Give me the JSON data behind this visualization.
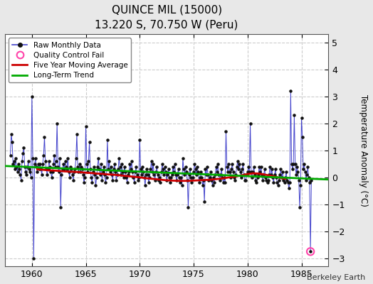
{
  "title": "QUINCE MIL (15000)",
  "subtitle": "13.220 S, 70.750 W (Peru)",
  "ylabel": "Temperature Anomaly (°C)",
  "credit": "Berkeley Earth",
  "xlim": [
    1957.5,
    1987.5
  ],
  "ylim": [
    -3.3,
    5.3
  ],
  "yticks": [
    -3,
    -2,
    -1,
    0,
    1,
    2,
    3,
    4,
    5
  ],
  "xticks": [
    1960,
    1965,
    1970,
    1975,
    1980,
    1985
  ],
  "fig_bg": "#e8e8e8",
  "plot_bg": "#ffffff",
  "grid_color": "#cccccc",
  "raw_data": [
    [
      1958.0,
      0.8
    ],
    [
      1958.083,
      1.6
    ],
    [
      1958.167,
      1.3
    ],
    [
      1958.25,
      0.5
    ],
    [
      1958.333,
      0.6
    ],
    [
      1958.417,
      0.3
    ],
    [
      1958.5,
      0.7
    ],
    [
      1958.583,
      0.4
    ],
    [
      1958.667,
      0.2
    ],
    [
      1958.75,
      0.5
    ],
    [
      1958.833,
      0.3
    ],
    [
      1958.917,
      0.1
    ],
    [
      1959.0,
      -0.1
    ],
    [
      1959.083,
      0.6
    ],
    [
      1959.167,
      0.9
    ],
    [
      1959.25,
      1.1
    ],
    [
      1959.333,
      0.4
    ],
    [
      1959.417,
      0.2
    ],
    [
      1959.5,
      0.1
    ],
    [
      1959.583,
      0.4
    ],
    [
      1959.667,
      0.6
    ],
    [
      1959.75,
      0.3
    ],
    [
      1959.833,
      0.2
    ],
    [
      1959.917,
      0.0
    ],
    [
      1960.0,
      3.0
    ],
    [
      1960.083,
      0.7
    ],
    [
      1960.167,
      -3.0
    ],
    [
      1960.25,
      0.5
    ],
    [
      1960.333,
      0.7
    ],
    [
      1960.417,
      0.4
    ],
    [
      1960.5,
      0.2
    ],
    [
      1960.583,
      0.5
    ],
    [
      1960.667,
      0.3
    ],
    [
      1960.75,
      0.5
    ],
    [
      1960.833,
      0.3
    ],
    [
      1960.917,
      0.1
    ],
    [
      1961.0,
      0.5
    ],
    [
      1961.083,
      0.8
    ],
    [
      1961.167,
      1.5
    ],
    [
      1961.25,
      0.6
    ],
    [
      1961.333,
      0.3
    ],
    [
      1961.417,
      0.1
    ],
    [
      1961.5,
      0.3
    ],
    [
      1961.583,
      0.6
    ],
    [
      1961.667,
      0.4
    ],
    [
      1961.75,
      0.2
    ],
    [
      1961.833,
      0.0
    ],
    [
      1961.917,
      0.2
    ],
    [
      1962.0,
      0.5
    ],
    [
      1962.083,
      0.8
    ],
    [
      1962.167,
      0.4
    ],
    [
      1962.25,
      0.6
    ],
    [
      1962.333,
      2.0
    ],
    [
      1962.417,
      0.4
    ],
    [
      1962.5,
      0.2
    ],
    [
      1962.583,
      0.7
    ],
    [
      1962.667,
      -1.1
    ],
    [
      1962.75,
      0.1
    ],
    [
      1962.833,
      0.3
    ],
    [
      1962.917,
      0.5
    ],
    [
      1963.0,
      0.3
    ],
    [
      1963.083,
      0.6
    ],
    [
      1963.167,
      0.4
    ],
    [
      1963.25,
      0.3
    ],
    [
      1963.333,
      0.7
    ],
    [
      1963.417,
      0.2
    ],
    [
      1963.5,
      0.0
    ],
    [
      1963.583,
      0.4
    ],
    [
      1963.667,
      0.3
    ],
    [
      1963.75,
      0.1
    ],
    [
      1963.833,
      -0.1
    ],
    [
      1963.917,
      0.2
    ],
    [
      1964.0,
      0.3
    ],
    [
      1964.083,
      0.7
    ],
    [
      1964.167,
      1.6
    ],
    [
      1964.25,
      0.4
    ],
    [
      1964.333,
      0.2
    ],
    [
      1964.417,
      0.5
    ],
    [
      1964.5,
      0.2
    ],
    [
      1964.583,
      0.4
    ],
    [
      1964.667,
      0.3
    ],
    [
      1964.75,
      0.1
    ],
    [
      1964.833,
      -0.2
    ],
    [
      1964.917,
      0.0
    ],
    [
      1965.0,
      1.9
    ],
    [
      1965.083,
      0.5
    ],
    [
      1965.167,
      0.2
    ],
    [
      1965.25,
      0.6
    ],
    [
      1965.333,
      1.3
    ],
    [
      1965.417,
      0.3
    ],
    [
      1965.5,
      0.0
    ],
    [
      1965.583,
      -0.2
    ],
    [
      1965.667,
      0.2
    ],
    [
      1965.75,
      0.4
    ],
    [
      1965.833,
      0.1
    ],
    [
      1965.917,
      -0.3
    ],
    [
      1966.0,
      0.0
    ],
    [
      1966.083,
      0.4
    ],
    [
      1966.167,
      0.7
    ],
    [
      1966.25,
      0.3
    ],
    [
      1966.333,
      0.1
    ],
    [
      1966.417,
      0.5
    ],
    [
      1966.5,
      -0.1
    ],
    [
      1966.583,
      0.2
    ],
    [
      1966.667,
      0.4
    ],
    [
      1966.75,
      0.1
    ],
    [
      1966.833,
      -0.2
    ],
    [
      1966.917,
      0.0
    ],
    [
      1967.0,
      1.4
    ],
    [
      1967.083,
      0.3
    ],
    [
      1967.167,
      0.6
    ],
    [
      1967.25,
      0.2
    ],
    [
      1967.333,
      0.4
    ],
    [
      1967.417,
      0.1
    ],
    [
      1967.5,
      -0.1
    ],
    [
      1967.583,
      0.3
    ],
    [
      1967.667,
      0.5
    ],
    [
      1967.75,
      0.2
    ],
    [
      1967.833,
      -0.1
    ],
    [
      1967.917,
      0.1
    ],
    [
      1968.0,
      0.3
    ],
    [
      1968.083,
      0.7
    ],
    [
      1968.167,
      0.4
    ],
    [
      1968.25,
      0.1
    ],
    [
      1968.333,
      0.5
    ],
    [
      1968.417,
      0.2
    ],
    [
      1968.5,
      0.0
    ],
    [
      1968.583,
      0.4
    ],
    [
      1968.667,
      0.2
    ],
    [
      1968.75,
      0.0
    ],
    [
      1968.833,
      -0.2
    ],
    [
      1968.917,
      0.1
    ],
    [
      1969.0,
      0.2
    ],
    [
      1969.083,
      0.5
    ],
    [
      1969.167,
      0.3
    ],
    [
      1969.25,
      0.6
    ],
    [
      1969.333,
      0.2
    ],
    [
      1969.417,
      0.0
    ],
    [
      1969.5,
      -0.2
    ],
    [
      1969.583,
      0.2
    ],
    [
      1969.667,
      0.4
    ],
    [
      1969.75,
      0.1
    ],
    [
      1969.833,
      -0.1
    ],
    [
      1969.917,
      0.0
    ],
    [
      1970.0,
      1.4
    ],
    [
      1970.083,
      0.3
    ],
    [
      1970.167,
      0.1
    ],
    [
      1970.25,
      0.4
    ],
    [
      1970.333,
      0.2
    ],
    [
      1970.417,
      0.0
    ],
    [
      1970.5,
      -0.3
    ],
    [
      1970.583,
      0.1
    ],
    [
      1970.667,
      0.3
    ],
    [
      1970.75,
      0.1
    ],
    [
      1970.833,
      -0.2
    ],
    [
      1970.917,
      0.0
    ],
    [
      1971.0,
      0.3
    ],
    [
      1971.083,
      0.6
    ],
    [
      1971.167,
      0.2
    ],
    [
      1971.25,
      0.5
    ],
    [
      1971.333,
      0.1
    ],
    [
      1971.417,
      -0.1
    ],
    [
      1971.5,
      0.2
    ],
    [
      1971.583,
      0.4
    ],
    [
      1971.667,
      0.1
    ],
    [
      1971.75,
      -0.1
    ],
    [
      1971.833,
      0.0
    ],
    [
      1971.917,
      -0.2
    ],
    [
      1972.0,
      0.2
    ],
    [
      1972.083,
      0.5
    ],
    [
      1972.167,
      0.3
    ],
    [
      1972.25,
      0.1
    ],
    [
      1972.333,
      0.4
    ],
    [
      1972.417,
      0.2
    ],
    [
      1972.5,
      -0.1
    ],
    [
      1972.583,
      0.1
    ],
    [
      1972.667,
      0.3
    ],
    [
      1972.75,
      0.0
    ],
    [
      1972.833,
      -0.2
    ],
    [
      1972.917,
      0.0
    ],
    [
      1973.0,
      0.1
    ],
    [
      1973.083,
      0.4
    ],
    [
      1973.167,
      0.2
    ],
    [
      1973.25,
      0.5
    ],
    [
      1973.333,
      0.1
    ],
    [
      1973.417,
      -0.1
    ],
    [
      1973.5,
      0.1
    ],
    [
      1973.583,
      0.3
    ],
    [
      1973.667,
      0.0
    ],
    [
      1973.75,
      -0.2
    ],
    [
      1973.833,
      0.0
    ],
    [
      1973.917,
      -0.3
    ],
    [
      1974.0,
      0.7
    ],
    [
      1974.083,
      0.3
    ],
    [
      1974.167,
      0.1
    ],
    [
      1974.25,
      0.4
    ],
    [
      1974.333,
      0.2
    ],
    [
      1974.417,
      -0.1
    ],
    [
      1974.5,
      -1.1
    ],
    [
      1974.583,
      0.1
    ],
    [
      1974.667,
      0.3
    ],
    [
      1974.75,
      0.0
    ],
    [
      1974.833,
      -0.2
    ],
    [
      1974.917,
      0.0
    ],
    [
      1975.0,
      0.2
    ],
    [
      1975.083,
      0.5
    ],
    [
      1975.167,
      0.3
    ],
    [
      1975.25,
      0.1
    ],
    [
      1975.333,
      0.4
    ],
    [
      1975.417,
      0.2
    ],
    [
      1975.5,
      -0.2
    ],
    [
      1975.583,
      0.0
    ],
    [
      1975.667,
      0.2
    ],
    [
      1975.75,
      0.0
    ],
    [
      1975.833,
      -0.3
    ],
    [
      1975.917,
      -0.1
    ],
    [
      1976.0,
      -0.9
    ],
    [
      1976.083,
      0.3
    ],
    [
      1976.167,
      0.1
    ],
    [
      1976.25,
      0.4
    ],
    [
      1976.333,
      0.1
    ],
    [
      1976.417,
      -0.1
    ],
    [
      1976.5,
      0.0
    ],
    [
      1976.583,
      0.2
    ],
    [
      1976.667,
      -0.1
    ],
    [
      1976.75,
      -0.3
    ],
    [
      1976.833,
      0.0
    ],
    [
      1976.917,
      -0.2
    ],
    [
      1977.0,
      0.1
    ],
    [
      1977.083,
      0.4
    ],
    [
      1977.167,
      0.2
    ],
    [
      1977.25,
      0.5
    ],
    [
      1977.333,
      0.1
    ],
    [
      1977.417,
      -0.1
    ],
    [
      1977.5,
      0.1
    ],
    [
      1977.583,
      0.3
    ],
    [
      1977.667,
      0.0
    ],
    [
      1977.75,
      -0.2
    ],
    [
      1977.833,
      0.0
    ],
    [
      1977.917,
      -0.2
    ],
    [
      1978.0,
      1.7
    ],
    [
      1978.083,
      0.4
    ],
    [
      1978.167,
      0.2
    ],
    [
      1978.25,
      0.5
    ],
    [
      1978.333,
      0.2
    ],
    [
      1978.417,
      0.0
    ],
    [
      1978.5,
      0.3
    ],
    [
      1978.583,
      0.5
    ],
    [
      1978.667,
      0.2
    ],
    [
      1978.75,
      0.0
    ],
    [
      1978.833,
      -0.1
    ],
    [
      1978.917,
      0.1
    ],
    [
      1979.0,
      0.4
    ],
    [
      1979.083,
      0.6
    ],
    [
      1979.167,
      0.3
    ],
    [
      1979.25,
      0.5
    ],
    [
      1979.333,
      0.2
    ],
    [
      1979.417,
      0.0
    ],
    [
      1979.5,
      0.3
    ],
    [
      1979.583,
      0.5
    ],
    [
      1979.667,
      0.1
    ],
    [
      1979.75,
      -0.1
    ],
    [
      1979.833,
      -0.1
    ],
    [
      1979.917,
      0.1
    ],
    [
      1980.0,
      0.2
    ],
    [
      1980.083,
      0.4
    ],
    [
      1980.167,
      0.2
    ],
    [
      1980.25,
      2.0
    ],
    [
      1980.333,
      0.2
    ],
    [
      1980.417,
      0.0
    ],
    [
      1980.5,
      0.2
    ],
    [
      1980.583,
      0.4
    ],
    [
      1980.667,
      0.1
    ],
    [
      1980.75,
      -0.1
    ],
    [
      1980.833,
      -0.2
    ],
    [
      1980.917,
      0.0
    ],
    [
      1981.0,
      0.1
    ],
    [
      1981.083,
      0.4
    ],
    [
      1981.167,
      0.2
    ],
    [
      1981.25,
      0.4
    ],
    [
      1981.333,
      0.1
    ],
    [
      1981.417,
      -0.1
    ],
    [
      1981.5,
      0.1
    ],
    [
      1981.583,
      0.3
    ],
    [
      1981.667,
      0.0
    ],
    [
      1981.75,
      -0.1
    ],
    [
      1981.833,
      -0.2
    ],
    [
      1981.917,
      -0.1
    ],
    [
      1982.0,
      0.1
    ],
    [
      1982.083,
      0.4
    ],
    [
      1982.167,
      0.1
    ],
    [
      1982.25,
      0.3
    ],
    [
      1982.333,
      0.0
    ],
    [
      1982.417,
      -0.2
    ],
    [
      1982.5,
      0.1
    ],
    [
      1982.583,
      0.3
    ],
    [
      1982.667,
      0.0
    ],
    [
      1982.75,
      -0.2
    ],
    [
      1982.833,
      -0.3
    ],
    [
      1982.917,
      -0.1
    ],
    [
      1983.0,
      0.1
    ],
    [
      1983.083,
      0.3
    ],
    [
      1983.167,
      0.0
    ],
    [
      1983.25,
      0.2
    ],
    [
      1983.333,
      -0.1
    ],
    [
      1983.417,
      -0.2
    ],
    [
      1983.5,
      0.0
    ],
    [
      1983.583,
      0.2
    ],
    [
      1983.667,
      -0.1
    ],
    [
      1983.75,
      -0.2
    ],
    [
      1983.833,
      -0.4
    ],
    [
      1983.917,
      -0.2
    ],
    [
      1984.0,
      3.2
    ],
    [
      1984.083,
      0.5
    ],
    [
      1984.167,
      0.3
    ],
    [
      1984.25,
      0.5
    ],
    [
      1984.333,
      2.3
    ],
    [
      1984.417,
      0.5
    ],
    [
      1984.5,
      0.1
    ],
    [
      1984.583,
      0.4
    ],
    [
      1984.667,
      0.2
    ],
    [
      1984.75,
      -0.1
    ],
    [
      1984.833,
      -1.1
    ],
    [
      1984.917,
      -0.3
    ],
    [
      1985.0,
      2.2
    ],
    [
      1985.083,
      1.5
    ],
    [
      1985.167,
      0.3
    ],
    [
      1985.25,
      0.5
    ],
    [
      1985.333,
      0.2
    ],
    [
      1985.417,
      -0.1
    ],
    [
      1985.5,
      0.1
    ],
    [
      1985.583,
      0.4
    ],
    [
      1985.667,
      0.0
    ],
    [
      1985.75,
      -0.2
    ],
    [
      1985.833,
      -2.75
    ],
    [
      1985.917,
      -0.1
    ]
  ],
  "qc_fail_points": [
    [
      1985.833,
      -2.75
    ]
  ],
  "moving_avg": [
    [
      1960.5,
      0.3
    ],
    [
      1961.0,
      0.28
    ],
    [
      1961.5,
      0.26
    ],
    [
      1962.0,
      0.25
    ],
    [
      1962.5,
      0.24
    ],
    [
      1963.0,
      0.22
    ],
    [
      1963.5,
      0.21
    ],
    [
      1964.0,
      0.2
    ],
    [
      1964.5,
      0.19
    ],
    [
      1965.0,
      0.17
    ],
    [
      1965.5,
      0.16
    ],
    [
      1966.0,
      0.14
    ],
    [
      1966.5,
      0.13
    ],
    [
      1967.0,
      0.11
    ],
    [
      1967.5,
      0.1
    ],
    [
      1968.0,
      0.08
    ],
    [
      1968.5,
      0.06
    ],
    [
      1969.0,
      0.04
    ],
    [
      1969.5,
      0.02
    ],
    [
      1970.0,
      0.0
    ],
    [
      1970.5,
      -0.03
    ],
    [
      1971.0,
      -0.05
    ],
    [
      1971.5,
      -0.07
    ],
    [
      1972.0,
      -0.09
    ],
    [
      1972.5,
      -0.11
    ],
    [
      1973.0,
      -0.12
    ],
    [
      1973.5,
      -0.13
    ],
    [
      1974.0,
      -0.13
    ],
    [
      1974.5,
      -0.13
    ],
    [
      1975.0,
      -0.12
    ],
    [
      1975.5,
      -0.11
    ],
    [
      1976.0,
      -0.1
    ],
    [
      1976.5,
      -0.09
    ],
    [
      1977.0,
      -0.07
    ],
    [
      1977.5,
      -0.05
    ],
    [
      1978.0,
      -0.02
    ],
    [
      1978.5,
      0.01
    ],
    [
      1979.0,
      0.04
    ],
    [
      1979.5,
      0.08
    ],
    [
      1980.0,
      0.12
    ],
    [
      1980.5,
      0.15
    ],
    [
      1981.0,
      0.14
    ],
    [
      1981.5,
      0.11
    ],
    [
      1982.0,
      0.07
    ],
    [
      1982.5,
      0.03
    ],
    [
      1983.0,
      -0.02
    ],
    [
      1983.5,
      -0.05
    ]
  ],
  "trend_line": [
    [
      1957.5,
      0.42
    ],
    [
      1987.5,
      -0.08
    ]
  ],
  "line_color": "#4444cc",
  "dot_color": "#111111",
  "ma_color": "#cc0000",
  "trend_color": "#00aa00",
  "qc_color": "#ff44aa"
}
